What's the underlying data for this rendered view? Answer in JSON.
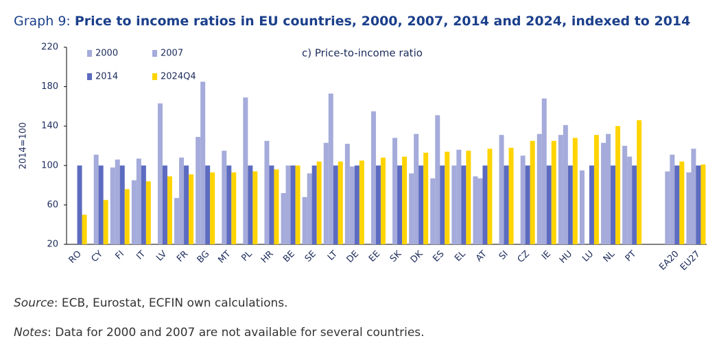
{
  "chart_data": {
    "type": "bar",
    "title_label": "Graph 9:",
    "title": "Price to income ratios in EU countries, 2000, 2007, 2014 and 2024, indexed to 2014",
    "annotation": "c) Price-to-income ratio",
    "y_label": "2014=100",
    "categories": [
      "RO",
      "CY",
      "FI",
      "IT",
      "LV",
      "FR",
      "BG",
      "MT",
      "PL",
      "HR",
      "BE",
      "SE",
      "LT",
      "DE",
      "EE",
      "SK",
      "DK",
      "ES",
      "EL",
      "AT",
      "SI",
      "CZ",
      "IE",
      "HU",
      "LU",
      "NL",
      "PT",
      null,
      "EA20",
      "EU27"
    ],
    "series": [
      {
        "name": "2000",
        "color": "#a5abda",
        "values": [
          null,
          null,
          98,
          85,
          null,
          67,
          129,
          null,
          null,
          null,
          72,
          68,
          123,
          122,
          null,
          null,
          92,
          87,
          100,
          89,
          null,
          null,
          132,
          131,
          95,
          123,
          120,
          null,
          94,
          93
        ]
      },
      {
        "name": "2007",
        "color": "#a5abda",
        "values": [
          null,
          111,
          106,
          107,
          163,
          108,
          185,
          115,
          169,
          125,
          100,
          92,
          173,
          99,
          155,
          128,
          132,
          151,
          116,
          87,
          131,
          110,
          168,
          141,
          null,
          132,
          109,
          null,
          111,
          117
        ]
      },
      {
        "name": "2014",
        "color": "#5c6bc0",
        "values": [
          100,
          100,
          100,
          100,
          100,
          100,
          100,
          100,
          100,
          100,
          100,
          100,
          100,
          100,
          100,
          100,
          100,
          100,
          100,
          100,
          100,
          100,
          100,
          100,
          100,
          100,
          100,
          null,
          100,
          100
        ]
      },
      {
        "name": "2024Q4",
        "color": "#ffd400",
        "values": [
          50,
          65,
          76,
          84,
          89,
          91,
          93,
          93,
          94,
          96,
          100,
          104,
          104,
          105,
          108,
          109,
          113,
          114,
          115,
          117,
          118,
          125,
          125,
          128,
          131,
          140,
          146,
          null,
          104,
          101
        ]
      }
    ],
    "ylim": [
      20,
      220
    ],
    "yticks": [
      20,
      60,
      100,
      140,
      180,
      220
    ],
    "grid": false,
    "source_label": "Source",
    "source_text": ": ECB, Eurostat, ECFIN own calculations.",
    "notes_label": "Notes",
    "notes_text": ": Data for 2000 and 2007 are not available for several countries."
  }
}
